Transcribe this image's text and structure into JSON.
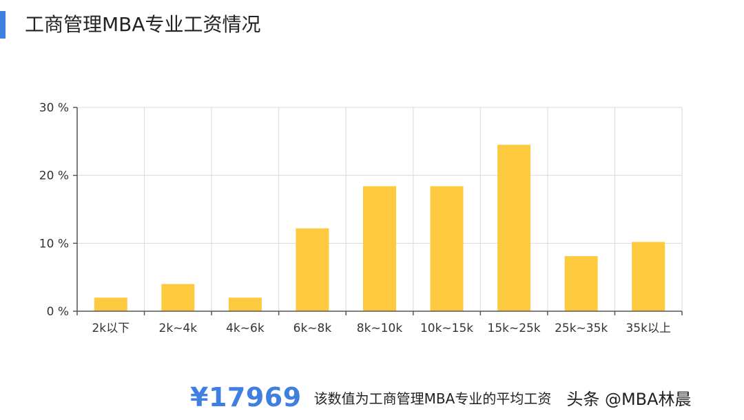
{
  "header": {
    "title": "工商管理MBA专业工资情况"
  },
  "colors": {
    "accent": "#3f7fe0",
    "bar": "#fcc93f",
    "grid": "#d9d9d9",
    "axis": "#555555"
  },
  "chart_data": {
    "type": "bar",
    "title": "",
    "xlabel": "",
    "ylabel": "",
    "categories": [
      "2k以下",
      "2k~4k",
      "4k~6k",
      "6k~8k",
      "8k~10k",
      "10k~15k",
      "15k~25k",
      "25k~35k",
      "35k以上"
    ],
    "values": [
      2,
      4,
      2,
      12.2,
      18.4,
      18.4,
      24.5,
      8.1,
      10.2
    ],
    "ylim": [
      0,
      30
    ],
    "yticks": [
      0,
      10,
      20,
      30
    ],
    "ytick_labels": [
      "0 %",
      "10 %",
      "20 %",
      "30 %"
    ],
    "grid": true,
    "legend": "none"
  },
  "footer": {
    "average_value": "¥17969",
    "average_note": "该数值为工商管理MBA专业的平均工资",
    "watermark": "头条 @MBA林晨"
  }
}
